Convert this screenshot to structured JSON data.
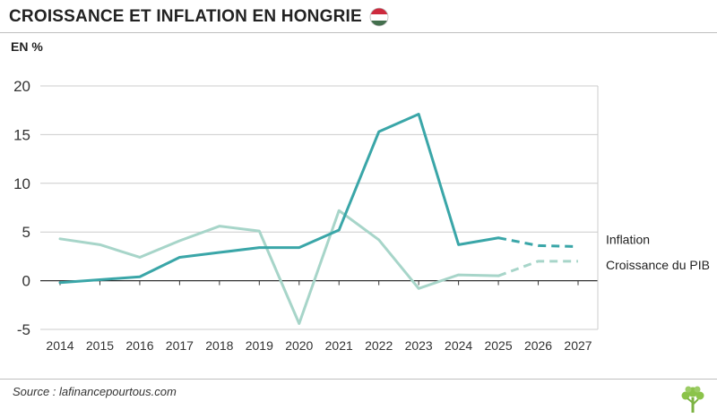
{
  "header": {
    "title": "CROISSANCE ET INFLATION EN HONGRIE",
    "flag_icon": "hungary-flag-icon",
    "unit_label": "EN %"
  },
  "footer": {
    "source": "Source : lafinancepourtous.com",
    "logo_icon": "tree-logo-icon"
  },
  "colors": {
    "inflation": "#3aa6a8",
    "croissance": "#a7d5c9",
    "grid": "#cccccc",
    "axis": "#333333"
  },
  "chart_data": {
    "type": "line",
    "title": "CROISSANCE ET INFLATION EN HONGRIE",
    "ylabel": "EN %",
    "xlabel": "",
    "x": [
      "2014",
      "2015",
      "2016",
      "2017",
      "2018",
      "2019",
      "2020",
      "2021",
      "2022",
      "2023",
      "2024",
      "2025",
      "2026",
      "2027"
    ],
    "ylim": [
      -5,
      20
    ],
    "yticks": [
      -5,
      0,
      5,
      10,
      15,
      20
    ],
    "grid": "horizontal",
    "legend": "right-end labels",
    "series": [
      {
        "name": "Inflation",
        "values": [
          -0.2,
          0.1,
          0.4,
          2.4,
          2.9,
          3.4,
          3.4,
          5.2,
          15.3,
          17.1,
          3.7,
          4.4,
          3.6,
          3.5
        ],
        "forecast_from": "2025"
      },
      {
        "name": "Croissance du PIB",
        "values": [
          4.3,
          3.7,
          2.4,
          4.1,
          5.6,
          5.1,
          -4.4,
          7.2,
          4.2,
          -0.8,
          0.6,
          0.5,
          2.0,
          2.0
        ],
        "forecast_from": "2025"
      }
    ]
  }
}
